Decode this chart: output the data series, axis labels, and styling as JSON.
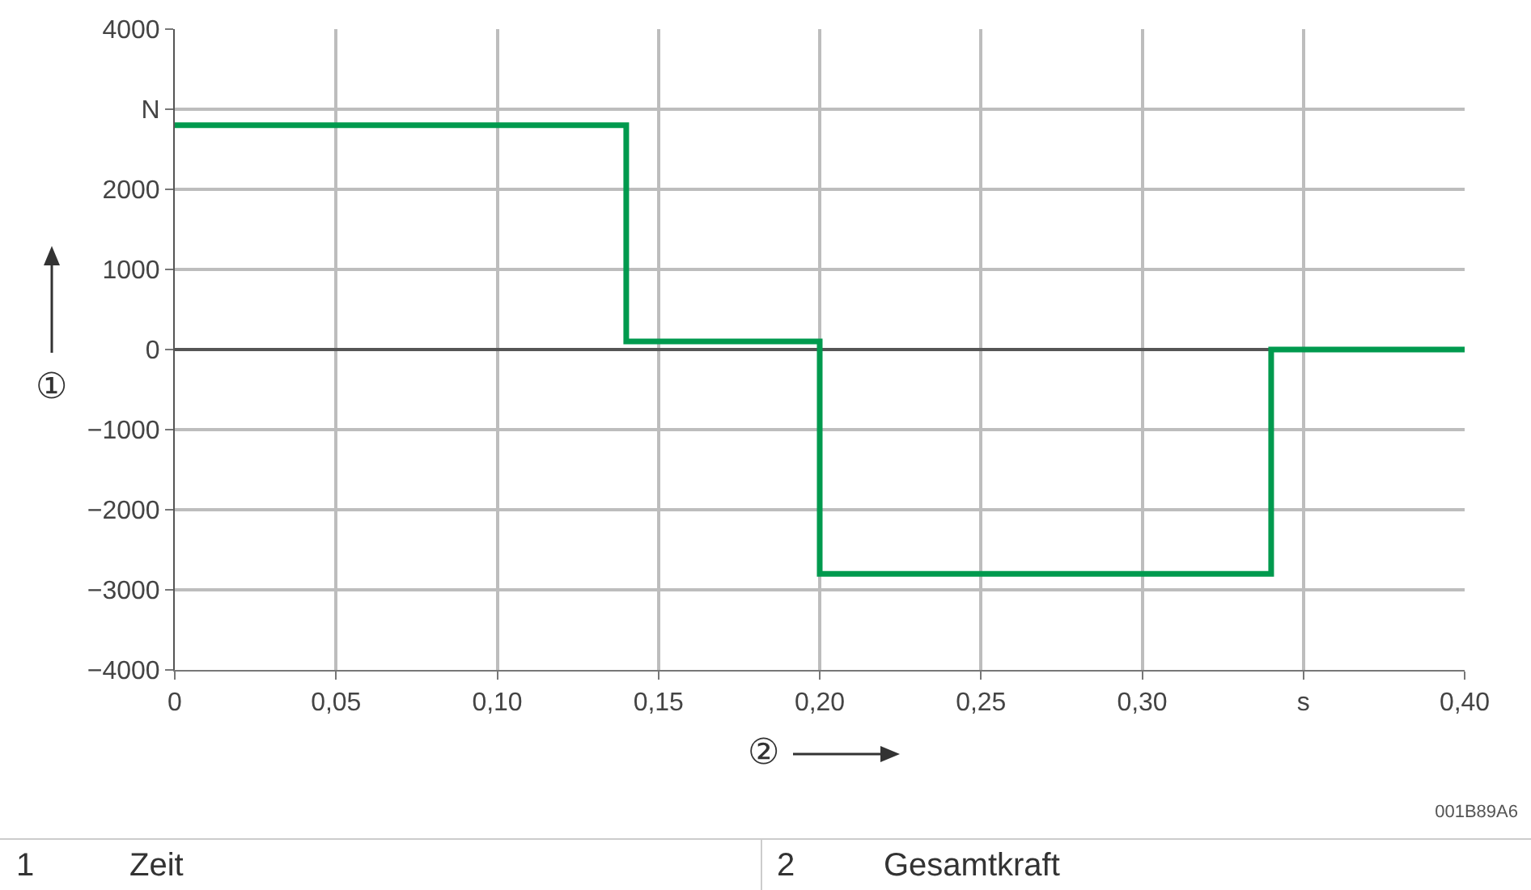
{
  "chart_data": {
    "type": "step",
    "xlabel": "②",
    "ylabel": "①",
    "x": [
      0,
      0.14,
      0.2,
      0.34,
      0.4
    ],
    "series": [
      {
        "color": "#009a4e",
        "values": [
          2800,
          100,
          -2800,
          0,
          0
        ]
      }
    ],
    "xlim": [
      0,
      0.4
    ],
    "xticks": [
      0,
      {
        "value": 0.05,
        "label": "0,05"
      },
      {
        "value": 0.1,
        "label": "0,10"
      },
      {
        "value": 0.15,
        "label": "0,15"
      },
      {
        "value": 0.2,
        "label": "0,20"
      },
      {
        "value": 0.25,
        "label": "0,25"
      },
      {
        "value": 0.3,
        "label": "0,30"
      },
      {
        "value": 0.35,
        "label": "s"
      },
      {
        "value": 0.4,
        "label": "0,40"
      }
    ],
    "ylim": [
      -4000,
      4000
    ],
    "yticks": [
      {
        "value": -4000,
        "label": "−4000"
      },
      {
        "value": -3000,
        "label": "−3000"
      },
      {
        "value": -2000,
        "label": "−2000"
      },
      {
        "value": -1000,
        "label": "−1000"
      },
      0,
      1000,
      2000,
      {
        "value": 3000,
        "label": "N"
      },
      4000
    ],
    "grid": true,
    "annotations": [
      "001B89A6",
      "1",
      "Zeit",
      "2",
      "Gesamtkraft"
    ]
  }
}
